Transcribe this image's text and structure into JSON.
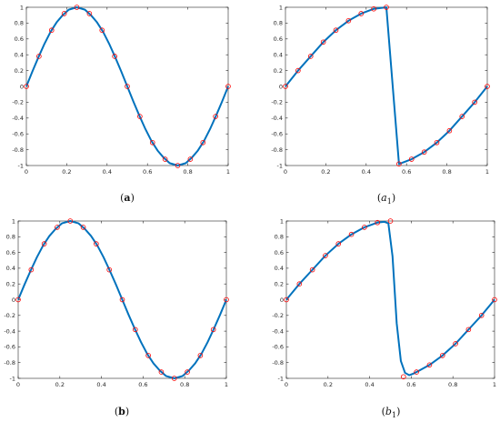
{
  "colors": {
    "curve": "#0072bd",
    "marker": "#ff0000",
    "axes": "#262626"
  },
  "chart_data": [
    {
      "id": "a",
      "type": "line",
      "caption": {
        "open": "(",
        "main": "a",
        "sub": "",
        "close": ")",
        "style": "bold"
      },
      "xlim": [
        0,
        1
      ],
      "ylim": [
        -1,
        1
      ],
      "x_ticks": [
        0,
        0.2,
        0.4,
        0.6,
        0.8,
        1
      ],
      "x_tick_labels": [
        "0",
        "0.2",
        "0.4",
        "0.6",
        "0.8",
        "1"
      ],
      "y_ticks": [
        -1,
        -0.8,
        -0.6,
        -0.4,
        -0.2,
        0,
        0.2,
        0.4,
        0.6,
        0.8,
        1
      ],
      "y_tick_labels": [
        "-1",
        "-0.8",
        "-0.6",
        "-0.4",
        "-0.2",
        "0",
        "0.2",
        "0.4",
        "0.6",
        "0.8",
        "1"
      ],
      "curve": {
        "x": [
          0,
          0.03,
          0.06,
          0.09,
          0.12,
          0.15,
          0.18,
          0.21,
          0.25,
          0.29,
          0.32,
          0.35,
          0.38,
          0.41,
          0.44,
          0.47,
          0.5,
          0.53,
          0.56,
          0.59,
          0.62,
          0.65,
          0.68,
          0.71,
          0.75,
          0.79,
          0.82,
          0.85,
          0.88,
          0.91,
          0.94,
          0.97,
          1
        ],
        "y": [
          0,
          0.19,
          0.37,
          0.54,
          0.69,
          0.81,
          0.9,
          0.97,
          1,
          0.97,
          0.9,
          0.81,
          0.69,
          0.54,
          0.37,
          0.19,
          0,
          -0.19,
          -0.37,
          -0.54,
          -0.69,
          -0.81,
          -0.9,
          -0.97,
          -1,
          -0.97,
          -0.9,
          -0.81,
          -0.69,
          -0.54,
          -0.37,
          -0.19,
          0
        ]
      },
      "markers": {
        "x": [
          0,
          0.0625,
          0.125,
          0.1875,
          0.25,
          0.3125,
          0.375,
          0.4375,
          0.5,
          0.5625,
          0.625,
          0.6875,
          0.75,
          0.8125,
          0.875,
          0.9375,
          1
        ],
        "y": [
          0,
          0.38,
          0.71,
          0.92,
          1,
          0.92,
          0.71,
          0.38,
          0,
          -0.38,
          -0.71,
          -0.92,
          -1,
          -0.92,
          -0.71,
          -0.38,
          0
        ]
      }
    },
    {
      "id": "a1",
      "type": "line",
      "caption": {
        "open": "(",
        "main": "a",
        "sub": "1",
        "close": ")",
        "style": "italic"
      },
      "xlim": [
        0,
        1
      ],
      "ylim": [
        -1,
        1
      ],
      "x_ticks": [
        0,
        0.2,
        0.4,
        0.6,
        0.8,
        1
      ],
      "x_tick_labels": [
        "0",
        "0.2",
        "0.4",
        "0.6",
        "0.8",
        "1"
      ],
      "y_ticks": [
        -1,
        -0.8,
        -0.6,
        -0.4,
        -0.2,
        0,
        0.2,
        0.4,
        0.6,
        0.8,
        1
      ],
      "y_tick_labels": [
        "-1",
        "-0.8",
        "-0.6",
        "-0.4",
        "-0.2",
        "0",
        "0.2",
        "0.4",
        "0.6",
        "0.8",
        "1"
      ],
      "curve": {
        "x": [
          0,
          0.0625,
          0.125,
          0.1875,
          0.25,
          0.3125,
          0.375,
          0.4375,
          0.5,
          0.5625,
          0.625,
          0.6875,
          0.75,
          0.8125,
          0.875,
          0.9375,
          1
        ],
        "y": [
          0,
          0.2,
          0.38,
          0.56,
          0.71,
          0.83,
          0.92,
          0.98,
          1,
          -0.98,
          -0.92,
          -0.83,
          -0.71,
          -0.56,
          -0.38,
          -0.2,
          0
        ]
      },
      "markers": {
        "x": [
          0,
          0.0625,
          0.125,
          0.1875,
          0.25,
          0.3125,
          0.375,
          0.4375,
          0.5,
          0.5625,
          0.625,
          0.6875,
          0.75,
          0.8125,
          0.875,
          0.9375,
          1
        ],
        "y": [
          0,
          0.2,
          0.38,
          0.56,
          0.71,
          0.83,
          0.92,
          0.98,
          1,
          -0.98,
          -0.92,
          -0.83,
          -0.71,
          -0.56,
          -0.38,
          -0.2,
          0
        ]
      }
    },
    {
      "id": "b",
      "type": "line",
      "caption": {
        "open": "(",
        "main": "b",
        "sub": "",
        "close": ")",
        "style": "bold"
      },
      "xlim": [
        0,
        1
      ],
      "ylim": [
        -1,
        1
      ],
      "x_ticks": [
        0,
        0.2,
        0.4,
        0.6,
        0.8,
        1
      ],
      "x_tick_labels": [
        "0",
        "0.2",
        "0.4",
        "0.6",
        "0.8",
        "1"
      ],
      "y_ticks": [
        -1,
        -0.8,
        -0.6,
        -0.4,
        -0.2,
        0,
        0.2,
        0.4,
        0.6,
        0.8,
        1
      ],
      "y_tick_labels": [
        "-1",
        "-0.8",
        "-0.6",
        "-0.4",
        "-0.2",
        "0",
        "0.2",
        "0.4",
        "0.6",
        "0.8",
        "1"
      ],
      "curve": {
        "x": [
          0,
          0.03,
          0.06,
          0.09,
          0.12,
          0.15,
          0.18,
          0.21,
          0.25,
          0.29,
          0.32,
          0.35,
          0.38,
          0.41,
          0.44,
          0.47,
          0.5,
          0.53,
          0.56,
          0.59,
          0.62,
          0.65,
          0.68,
          0.71,
          0.75,
          0.79,
          0.82,
          0.85,
          0.88,
          0.91,
          0.94,
          0.97,
          1
        ],
        "y": [
          0,
          0.19,
          0.37,
          0.54,
          0.69,
          0.81,
          0.9,
          0.97,
          1,
          0.97,
          0.9,
          0.81,
          0.69,
          0.54,
          0.37,
          0.19,
          0,
          -0.19,
          -0.37,
          -0.54,
          -0.69,
          -0.81,
          -0.9,
          -0.97,
          -1,
          -0.97,
          -0.9,
          -0.81,
          -0.69,
          -0.54,
          -0.37,
          -0.19,
          0
        ]
      },
      "markers": {
        "x": [
          0,
          0.0625,
          0.125,
          0.1875,
          0.25,
          0.3125,
          0.375,
          0.4375,
          0.5,
          0.5625,
          0.625,
          0.6875,
          0.75,
          0.8125,
          0.875,
          0.9375,
          1
        ],
        "y": [
          0,
          0.38,
          0.71,
          0.92,
          1,
          0.92,
          0.71,
          0.38,
          0,
          -0.38,
          -0.71,
          -0.92,
          -1,
          -0.92,
          -0.71,
          -0.38,
          0
        ]
      }
    },
    {
      "id": "b1",
      "type": "line",
      "caption": {
        "open": "(",
        "main": "b",
        "sub": "1",
        "close": ")",
        "style": "italic"
      },
      "xlim": [
        0,
        1
      ],
      "ylim": [
        -1,
        1
      ],
      "x_ticks": [
        0,
        0.2,
        0.4,
        0.6,
        0.8,
        1
      ],
      "x_tick_labels": [
        "0",
        "0.2",
        "0.4",
        "0.6",
        "0.8",
        "1"
      ],
      "y_ticks": [
        -1,
        -0.8,
        -0.6,
        -0.4,
        -0.2,
        0,
        0.2,
        0.4,
        0.6,
        0.8,
        1
      ],
      "y_tick_labels": [
        "-1",
        "-0.8",
        "-0.6",
        "-0.4",
        "-0.2",
        "0",
        "0.2",
        "0.4",
        "0.6",
        "0.8",
        "1"
      ],
      "curve": {
        "x": [
          0,
          0.0625,
          0.125,
          0.1875,
          0.25,
          0.3125,
          0.375,
          0.4375,
          0.47,
          0.49,
          0.51,
          0.53,
          0.55,
          0.57,
          0.59,
          0.61,
          0.625,
          0.6875,
          0.75,
          0.8125,
          0.875,
          0.9375,
          1
        ],
        "y": [
          0,
          0.2,
          0.38,
          0.56,
          0.71,
          0.83,
          0.92,
          0.98,
          0.99,
          0.97,
          0.55,
          -0.3,
          -0.78,
          -0.93,
          -0.96,
          -0.94,
          -0.92,
          -0.83,
          -0.71,
          -0.56,
          -0.38,
          -0.2,
          0
        ]
      },
      "markers": {
        "x": [
          0,
          0.0625,
          0.125,
          0.1875,
          0.25,
          0.3125,
          0.375,
          0.4375,
          0.5,
          0.5625,
          0.625,
          0.6875,
          0.75,
          0.8125,
          0.875,
          0.9375,
          1
        ],
        "y": [
          0,
          0.2,
          0.38,
          0.56,
          0.71,
          0.83,
          0.92,
          0.98,
          1,
          -0.98,
          -0.92,
          -0.83,
          -0.71,
          -0.56,
          -0.38,
          -0.2,
          0
        ]
      }
    }
  ]
}
